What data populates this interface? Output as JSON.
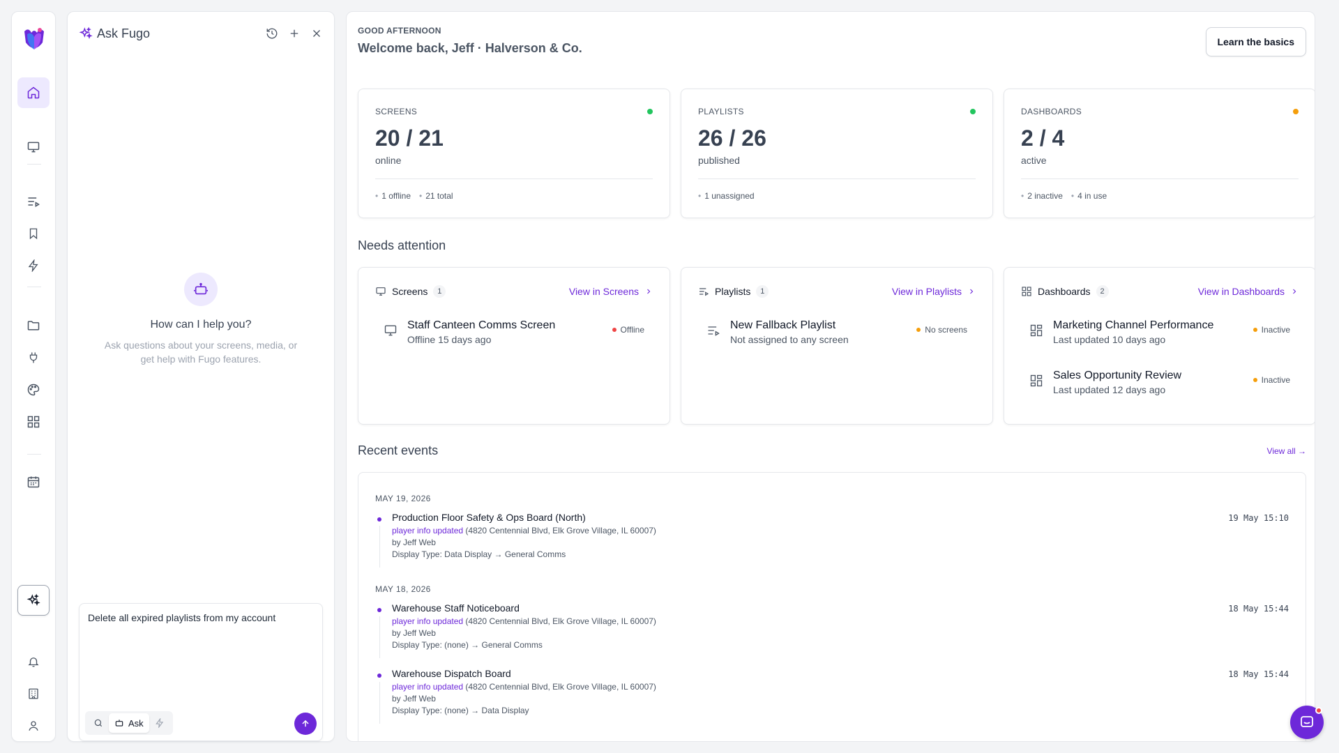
{
  "colors": {
    "accent": "#6d28d9",
    "online": "#22c55e",
    "warning": "#f59e0b",
    "offline": "#ef4444"
  },
  "rail": {
    "items": [
      {
        "name": "home-icon"
      },
      {
        "name": "monitor-icon"
      },
      {
        "name": "playlist-icon"
      },
      {
        "name": "bookmark-icon"
      },
      {
        "name": "lightning-icon"
      },
      {
        "name": "folder-icon"
      },
      {
        "name": "plug-icon"
      },
      {
        "name": "palette-icon"
      },
      {
        "name": "dashboard-grid-icon"
      },
      {
        "name": "calendar-icon"
      },
      {
        "name": "ai-sparkle-icon"
      },
      {
        "name": "bell-icon"
      },
      {
        "name": "building-icon"
      },
      {
        "name": "user-icon"
      }
    ]
  },
  "ask": {
    "title": "Ask Fugo",
    "empty_heading": "How can I help you?",
    "empty_sub": "Ask questions about your screens, media, or get help with Fugo features.",
    "input_value": "Delete all expired playlists from my account",
    "mode_label": "Ask"
  },
  "header": {
    "greeting": "GOOD AFTERNOON",
    "welcome": "Welcome back, Jeff · Halverson & Co.",
    "learn_label": "Learn the basics"
  },
  "stats": [
    {
      "label": "SCREENS",
      "value": "20 / 21",
      "unit": "online",
      "meta": [
        "1 offline",
        "21 total"
      ],
      "status": "online"
    },
    {
      "label": "PLAYLISTS",
      "value": "26 / 26",
      "unit": "published",
      "meta": [
        "1 unassigned"
      ],
      "status": "online"
    },
    {
      "label": "DASHBOARDS",
      "value": "2 / 4",
      "unit": "active",
      "meta": [
        "2 inactive",
        "4 in use"
      ],
      "status": "warning"
    }
  ],
  "attention": {
    "title": "Needs attention",
    "cards": [
      {
        "name": "Screens",
        "count": "1",
        "view_label": "View in Screens",
        "items": [
          {
            "title": "Staff Canteen Comms Screen",
            "sub": "Offline 15 days ago",
            "status": "Offline"
          }
        ]
      },
      {
        "name": "Playlists",
        "count": "1",
        "view_label": "View in Playlists",
        "items": [
          {
            "title": "New Fallback Playlist",
            "sub": "Not assigned to any screen",
            "status": "No screens"
          }
        ]
      },
      {
        "name": "Dashboards",
        "count": "2",
        "view_label": "View in Dashboards",
        "items": [
          {
            "title": "Marketing Channel Performance",
            "sub": "Last updated 10 days ago",
            "status": "Inactive"
          },
          {
            "title": "Sales Opportunity Review",
            "sub": "Last updated 12 days ago",
            "status": "Inactive"
          }
        ]
      }
    ]
  },
  "recent": {
    "title": "Recent events",
    "view_all": "View all →",
    "groups": [
      {
        "date": "MAY 19, 2026",
        "events": [
          {
            "title": "Production Floor Safety & Ops Board (North)",
            "link": "player info updated",
            "detail": " (4820 Centennial Blvd, Elk Grove Village, IL 60007)",
            "by": "by Jeff Web",
            "change": "Display Type: Data Display → General Comms",
            "time": "19 May 15:10"
          }
        ]
      },
      {
        "date": "MAY 18, 2026",
        "events": [
          {
            "title": "Warehouse Staff Noticeboard",
            "link": "player info updated",
            "detail": " (4820 Centennial Blvd, Elk Grove Village, IL 60007)",
            "by": "by Jeff Web",
            "change": "Display Type: (none) → General Comms",
            "time": "18 May 15:44"
          },
          {
            "title": "Warehouse Dispatch Board",
            "link": "player info updated",
            "detail": " (4820 Centennial Blvd, Elk Grove Village, IL 60007)",
            "by": "by Jeff Web",
            "change": "Display Type: (none) → Data Display",
            "time": "18 May 15:44"
          }
        ]
      }
    ]
  }
}
